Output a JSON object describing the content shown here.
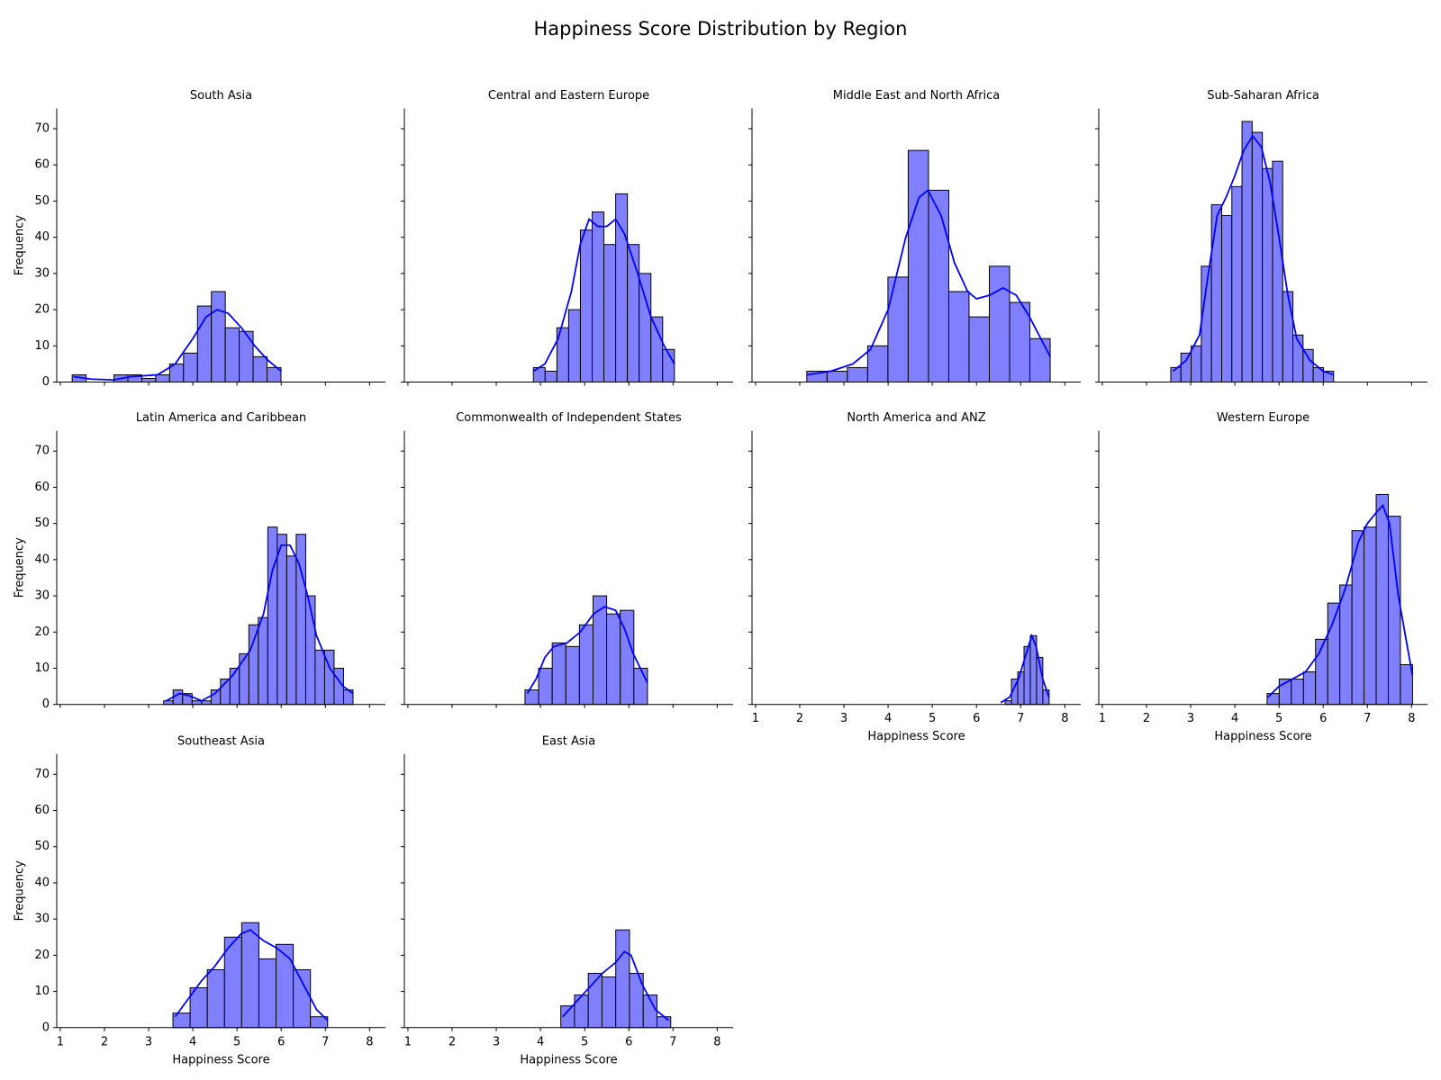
{
  "title": "Happiness Score Distribution by Region",
  "chart_data": [
    {
      "type": "histogram",
      "title": "South Asia",
      "ylabel": "Frequency",
      "bins": [
        1.27,
        1.585,
        1.9,
        2.215,
        2.53,
        2.845,
        3.16,
        3.475,
        3.79,
        4.105,
        4.42,
        4.735,
        5.05,
        5.365,
        5.68,
        5.995
      ],
      "values": [
        2,
        0,
        0,
        2,
        2,
        1,
        2,
        5,
        8,
        21,
        25,
        15,
        14,
        7,
        4
      ],
      "color": "#8080ff",
      "edgecolor": "#000000",
      "kde": {
        "x": [
          1.3,
          1.7,
          2.2,
          2.6,
          3.2,
          3.6,
          4.0,
          4.3,
          4.55,
          4.8,
          5.1,
          5.4,
          5.7,
          6.0
        ],
        "y": [
          1.5,
          0.8,
          0.6,
          1.5,
          2,
          5,
          12,
          18,
          20,
          19,
          15,
          10,
          6,
          3
        ],
        "color": "#0000ff"
      },
      "xlim": [
        0.92,
        8.36
      ],
      "ylim": [
        0,
        75.6
      ],
      "xticks": [
        1,
        2,
        3,
        4,
        5,
        6,
        7,
        8
      ],
      "yticks": [
        0,
        10,
        20,
        30,
        40,
        50,
        60,
        70
      ],
      "xtick_labels": false,
      "ytick_labels": true
    },
    {
      "type": "histogram",
      "title": "Central and Eastern Europe",
      "bins": [
        3.84,
        4.106,
        4.372,
        4.638,
        4.904,
        5.17,
        5.436,
        5.702,
        5.968,
        6.234,
        6.5,
        6.766,
        7.032
      ],
      "values": [
        4,
        3,
        15,
        20,
        42,
        47,
        38,
        52,
        38,
        30,
        18,
        9
      ],
      "color": "#8080ff",
      "edgecolor": "#000000",
      "kde": {
        "x": [
          3.84,
          4.1,
          4.4,
          4.7,
          4.9,
          5.1,
          5.3,
          5.5,
          5.7,
          5.9,
          6.2,
          6.5,
          6.8,
          7.03
        ],
        "y": [
          3,
          5,
          12,
          25,
          38,
          45,
          43,
          43,
          45,
          41,
          30,
          18,
          10,
          5
        ],
        "color": "#0000ff"
      },
      "xlim": [
        0.92,
        8.36
      ],
      "ylim": [
        0,
        75.6
      ],
      "xticks": [
        1,
        2,
        3,
        4,
        5,
        6,
        7,
        8
      ],
      "yticks": [
        0,
        10,
        20,
        30,
        40,
        50,
        60,
        70
      ],
      "xtick_labels": false,
      "ytick_labels": false
    },
    {
      "type": "histogram",
      "title": "Middle East and North Africa",
      "bins": [
        2.16,
        2.619,
        3.078,
        3.537,
        3.996,
        4.455,
        4.914,
        5.373,
        5.832,
        6.291,
        6.75,
        7.209,
        7.668
      ],
      "values": [
        3,
        3,
        4,
        10,
        29,
        64,
        53,
        25,
        18,
        32,
        22,
        12
      ],
      "color": "#8080ff",
      "edgecolor": "#000000",
      "kde": {
        "x": [
          2.16,
          2.7,
          3.2,
          3.6,
          4.0,
          4.4,
          4.7,
          4.9,
          5.2,
          5.5,
          5.8,
          6.0,
          6.3,
          6.6,
          6.9,
          7.2,
          7.67
        ],
        "y": [
          2,
          3,
          5,
          9,
          20,
          40,
          51,
          53,
          46,
          33,
          25,
          23,
          24,
          26,
          24,
          18,
          7
        ],
        "color": "#0000ff"
      },
      "xlim": [
        0.92,
        8.36
      ],
      "ylim": [
        0,
        75.6
      ],
      "xticks": [
        1,
        2,
        3,
        4,
        5,
        6,
        7,
        8
      ],
      "yticks": [
        0,
        10,
        20,
        30,
        40,
        50,
        60,
        70
      ],
      "xtick_labels": false,
      "ytick_labels": false
    },
    {
      "type": "histogram",
      "title": "Sub-Saharan Africa",
      "bins": [
        2.55,
        2.78,
        3.011,
        3.241,
        3.471,
        3.702,
        3.932,
        4.162,
        4.392,
        4.623,
        4.853,
        5.083,
        5.314,
        5.544,
        5.774,
        6.005,
        6.235
      ],
      "values": [
        4,
        8,
        10,
        32,
        49,
        46,
        54,
        72,
        69,
        59,
        61,
        25,
        13,
        9,
        4,
        3
      ],
      "color": "#8080ff",
      "edgecolor": "#000000",
      "kde": {
        "x": [
          2.6,
          2.9,
          3.2,
          3.4,
          3.6,
          3.8,
          4.0,
          4.2,
          4.4,
          4.6,
          4.8,
          5.0,
          5.2,
          5.4,
          5.7,
          6.0,
          6.24
        ],
        "y": [
          3,
          6,
          13,
          30,
          46,
          51,
          57,
          64,
          68,
          65,
          55,
          40,
          24,
          12,
          6,
          3,
          2
        ],
        "color": "#0000ff"
      },
      "xlim": [
        0.92,
        8.36
      ],
      "ylim": [
        0,
        75.6
      ],
      "xticks": [
        1,
        2,
        3,
        4,
        5,
        6,
        7,
        8
      ],
      "yticks": [
        0,
        10,
        20,
        30,
        40,
        50,
        60,
        70
      ],
      "xtick_labels": false,
      "ytick_labels": false
    },
    {
      "type": "histogram",
      "title": "Latin America and Caribbean",
      "ylabel": "Frequency",
      "bins": [
        3.34,
        3.554,
        3.769,
        3.983,
        4.197,
        4.412,
        4.626,
        4.84,
        5.054,
        5.269,
        5.483,
        5.697,
        5.912,
        6.126,
        6.34,
        6.555,
        6.769,
        6.983,
        7.197,
        7.412,
        7.626
      ],
      "values": [
        1,
        4,
        3,
        1,
        1,
        4,
        7,
        10,
        14,
        22,
        24,
        49,
        47,
        41,
        47,
        30,
        15,
        15,
        10,
        4
      ],
      "color": "#8080ff",
      "edgecolor": "#000000",
      "kde": {
        "x": [
          3.4,
          3.7,
          3.9,
          4.2,
          4.5,
          4.9,
          5.3,
          5.6,
          5.8,
          6.0,
          6.2,
          6.4,
          6.6,
          6.8,
          7.1,
          7.4,
          7.63
        ],
        "y": [
          1,
          3,
          2.5,
          1,
          3,
          8,
          15,
          25,
          37,
          44,
          44,
          39,
          30,
          19,
          10,
          5,
          3
        ],
        "color": "#0000ff"
      },
      "xlim": [
        0.92,
        8.36
      ],
      "ylim": [
        0,
        75.6
      ],
      "xticks": [
        1,
        2,
        3,
        4,
        5,
        6,
        7,
        8
      ],
      "yticks": [
        0,
        10,
        20,
        30,
        40,
        50,
        60,
        70
      ],
      "xtick_labels": false,
      "ytick_labels": true
    },
    {
      "type": "histogram",
      "title": "Commonwealth of Independent States",
      "bins": [
        3.65,
        3.958,
        4.266,
        4.574,
        4.882,
        5.19,
        5.498,
        5.806,
        6.114,
        6.422
      ],
      "values": [
        4,
        10,
        17,
        16,
        22,
        30,
        25,
        26,
        10
      ],
      "color": "#8080ff",
      "edgecolor": "#000000",
      "kde": {
        "x": [
          3.7,
          3.9,
          4.1,
          4.3,
          4.6,
          4.9,
          5.2,
          5.45,
          5.7,
          5.9,
          6.1,
          6.42
        ],
        "y": [
          3,
          7,
          13,
          16,
          17,
          20,
          25,
          27,
          26,
          21,
          14,
          6
        ],
        "color": "#0000ff"
      },
      "xlim": [
        0.92,
        8.36
      ],
      "ylim": [
        0,
        75.6
      ],
      "xticks": [
        1,
        2,
        3,
        4,
        5,
        6,
        7,
        8
      ],
      "yticks": [
        0,
        10,
        20,
        30,
        40,
        50,
        60,
        70
      ],
      "xtick_labels": false,
      "ytick_labels": false
    },
    {
      "type": "histogram",
      "title": "North America and ANZ",
      "xlabel": "Happiness Score",
      "bins": [
        6.65,
        6.792,
        6.934,
        7.076,
        7.218,
        7.36,
        7.502,
        7.644
      ],
      "values": [
        1,
        7,
        9,
        16,
        19,
        13,
        4
      ],
      "color": "#8080ff",
      "edgecolor": "#000000",
      "kde": {
        "x": [
          6.55,
          6.75,
          6.95,
          7.1,
          7.25,
          7.35,
          7.5,
          7.64
        ],
        "y": [
          0.5,
          2,
          7,
          13,
          19,
          16,
          7,
          2
        ],
        "color": "#0000ff"
      },
      "xlim": [
        0.92,
        8.36
      ],
      "ylim": [
        0,
        75.6
      ],
      "xticks": [
        1,
        2,
        3,
        4,
        5,
        6,
        7,
        8
      ],
      "yticks": [
        0,
        10,
        20,
        30,
        40,
        50,
        60,
        70
      ],
      "xtick_labels": true,
      "ytick_labels": false
    },
    {
      "type": "histogram",
      "title": "Western Europe",
      "xlabel": "Happiness Score",
      "bins": [
        4.73,
        5.004,
        5.279,
        5.553,
        5.827,
        6.102,
        6.376,
        6.65,
        6.924,
        7.199,
        7.473,
        7.747,
        8.022
      ],
      "values": [
        3,
        7,
        7,
        9,
        18,
        28,
        33,
        48,
        49,
        58,
        52,
        11
      ],
      "color": "#8080ff",
      "edgecolor": "#000000",
      "kde": {
        "x": [
          4.75,
          5.0,
          5.3,
          5.6,
          5.9,
          6.2,
          6.5,
          6.8,
          7.0,
          7.2,
          7.35,
          7.5,
          7.7,
          8.02
        ],
        "y": [
          2,
          5,
          7,
          9,
          14,
          22,
          32,
          45,
          50,
          53,
          55,
          50,
          30,
          8
        ],
        "color": "#0000ff"
      },
      "xlim": [
        0.92,
        8.36
      ],
      "ylim": [
        0,
        75.6
      ],
      "xticks": [
        1,
        2,
        3,
        4,
        5,
        6,
        7,
        8
      ],
      "yticks": [
        0,
        10,
        20,
        30,
        40,
        50,
        60,
        70
      ],
      "xtick_labels": true,
      "ytick_labels": false
    },
    {
      "type": "histogram",
      "title": "Southeast Asia",
      "xlabel": "Happiness Score",
      "ylabel": "Frequency",
      "bins": [
        3.55,
        3.939,
        4.328,
        4.717,
        5.106,
        5.495,
        5.884,
        6.273,
        6.662,
        7.051
      ],
      "values": [
        4,
        11,
        16,
        25,
        29,
        19,
        23,
        16,
        3
      ],
      "color": "#8080ff",
      "edgecolor": "#000000",
      "kde": {
        "x": [
          3.6,
          3.9,
          4.2,
          4.5,
          4.8,
          5.1,
          5.3,
          5.6,
          5.9,
          6.2,
          6.5,
          6.8,
          7.05
        ],
        "y": [
          3,
          8,
          13,
          17,
          22,
          26,
          27,
          24,
          22,
          19,
          12,
          5,
          2
        ],
        "color": "#0000ff"
      },
      "xlim": [
        0.92,
        8.36
      ],
      "ylim": [
        0,
        75.6
      ],
      "xticks": [
        1,
        2,
        3,
        4,
        5,
        6,
        7,
        8
      ],
      "yticks": [
        0,
        10,
        20,
        30,
        40,
        50,
        60,
        70
      ],
      "xtick_labels": true,
      "ytick_labels": true
    },
    {
      "type": "histogram",
      "title": "East Asia",
      "xlabel": "Happiness Score",
      "bins": [
        4.46,
        4.771,
        5.082,
        5.393,
        5.704,
        6.015,
        6.326,
        6.637,
        6.948
      ],
      "values": [
        6,
        9,
        15,
        14,
        27,
        15,
        9,
        3
      ],
      "color": "#8080ff",
      "edgecolor": "#000000",
      "kde": {
        "x": [
          4.5,
          4.8,
          5.1,
          5.4,
          5.7,
          5.9,
          6.05,
          6.3,
          6.6,
          6.9
        ],
        "y": [
          3,
          7,
          11,
          15,
          18,
          21,
          20,
          12,
          5,
          2
        ],
        "color": "#0000ff"
      },
      "xlim": [
        0.92,
        8.36
      ],
      "ylim": [
        0,
        75.6
      ],
      "xticks": [
        1,
        2,
        3,
        4,
        5,
        6,
        7,
        8
      ],
      "yticks": [
        0,
        10,
        20,
        30,
        40,
        50,
        60,
        70
      ],
      "xtick_labels": true,
      "ytick_labels": false
    }
  ]
}
